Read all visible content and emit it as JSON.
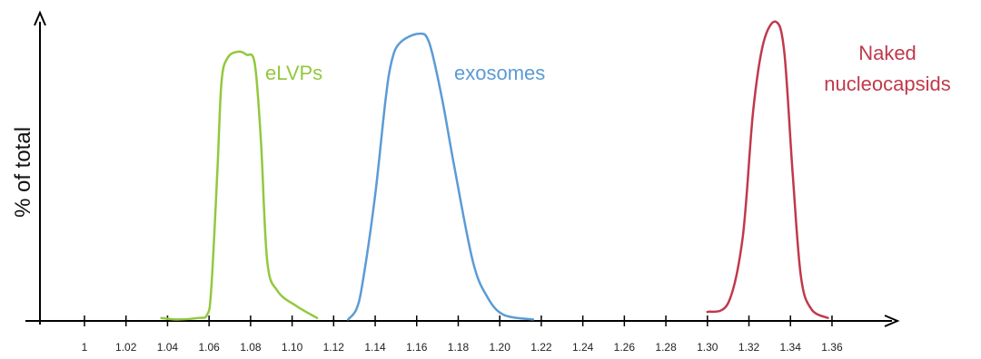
{
  "chart_data": {
    "type": "line",
    "title": "",
    "xlabel": "",
    "ylabel": "% of total",
    "x_ticks": [
      "1",
      "1.02",
      "1.04",
      "1.06",
      "1.08",
      "1.10",
      "1.12",
      "1.14",
      "1.16",
      "1.18",
      "1.20",
      "1.22",
      "1.24",
      "1.26",
      "1.28",
      "1.30",
      "1.32",
      "1.34",
      "1.36"
    ],
    "grid": false,
    "legend": "inline labels",
    "series": [
      {
        "name": "eLVPs",
        "color": "#92c83e",
        "points": [
          [
            1.037,
            0.01
          ],
          [
            1.045,
            0.005
          ],
          [
            1.055,
            0.01
          ],
          [
            1.059,
            0.02
          ],
          [
            1.061,
            0.1
          ],
          [
            1.064,
            0.5
          ],
          [
            1.066,
            0.8
          ],
          [
            1.069,
            0.88
          ],
          [
            1.074,
            0.9
          ],
          [
            1.078,
            0.89
          ],
          [
            1.082,
            0.86
          ],
          [
            1.085,
            0.6
          ],
          [
            1.088,
            0.2
          ],
          [
            1.093,
            0.1
          ],
          [
            1.102,
            0.05
          ],
          [
            1.112,
            0.01
          ]
        ]
      },
      {
        "name": "exosomes",
        "color": "#5b9bd5",
        "points": [
          [
            1.127,
            0.005
          ],
          [
            1.131,
            0.04
          ],
          [
            1.134,
            0.13
          ],
          [
            1.14,
            0.42
          ],
          [
            1.145,
            0.74
          ],
          [
            1.148,
            0.87
          ],
          [
            1.152,
            0.93
          ],
          [
            1.161,
            0.96
          ],
          [
            1.166,
            0.93
          ],
          [
            1.172,
            0.75
          ],
          [
            1.178,
            0.52
          ],
          [
            1.187,
            0.2
          ],
          [
            1.194,
            0.08
          ],
          [
            1.202,
            0.02
          ],
          [
            1.216,
            0.005
          ]
        ]
      },
      {
        "name": "Naked nucleocapsids",
        "color": "#c0394b",
        "points": [
          [
            1.3,
            0.03
          ],
          [
            1.31,
            0.06
          ],
          [
            1.317,
            0.28
          ],
          [
            1.322,
            0.7
          ],
          [
            1.327,
            0.93
          ],
          [
            1.333,
            1.0
          ],
          [
            1.337,
            0.9
          ],
          [
            1.341,
            0.5
          ],
          [
            1.345,
            0.15
          ],
          [
            1.35,
            0.04
          ],
          [
            1.358,
            0.01
          ]
        ]
      }
    ],
    "annotations": [
      {
        "series": "eLVPs",
        "lines": [
          "eLVPs"
        ]
      },
      {
        "series": "exosomes",
        "lines": [
          "exosomes"
        ]
      },
      {
        "series": "Naked nucleocapsids",
        "lines": [
          "Naked",
          "nucleocapsids"
        ]
      }
    ]
  }
}
